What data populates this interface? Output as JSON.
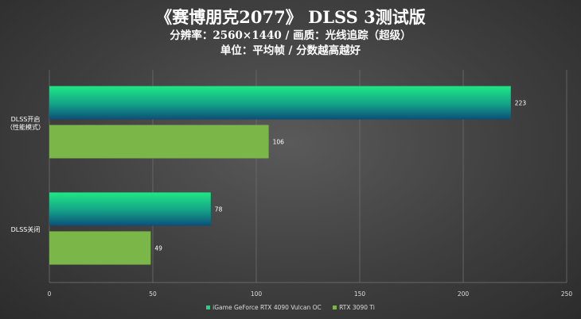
{
  "chart_data": {
    "type": "bar",
    "orientation": "horizontal",
    "title": "《赛博朋克2077》 DLSS 3测试版",
    "subtitle_lines": [
      "分辨率：2560×1440 / 画质：光线追踪（超级）",
      "单位：平均帧 / 分数越高越好"
    ],
    "categories": [
      {
        "lines": [
          "DLSS开启",
          "（性能模式）"
        ]
      },
      {
        "lines": [
          "DLSS关闭"
        ]
      }
    ],
    "series": [
      {
        "name": "iGame GeForce RTX 4090 Vulcan OC",
        "color": "#1fd482",
        "values": [
          223,
          78
        ]
      },
      {
        "name": "RTX 3090 Ti",
        "color": "#7ab648",
        "values": [
          106,
          49
        ]
      }
    ],
    "xlim": [
      0,
      250
    ],
    "xticks": [
      0,
      50,
      100,
      150,
      200,
      250
    ],
    "grid": true,
    "legend_position": "bottom"
  }
}
